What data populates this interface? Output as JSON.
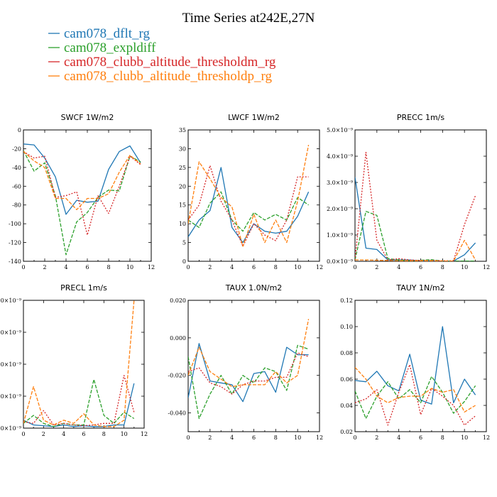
{
  "figure": {
    "title": "Time Series at242E,27N"
  },
  "legend": [
    {
      "name": "cam078_dflt_rg",
      "color": "#1f77b4",
      "dash": "solid"
    },
    {
      "name": "cam078_expldiff",
      "color": "#2ca02c",
      "dash": "dashed"
    },
    {
      "name": "cam078_clubb_altitude_thresholdm_rg",
      "color": "#d62728",
      "dash": "dotted"
    },
    {
      "name": "cam078_clubb_altitude_thresholdp_rg",
      "color": "#ff7f0e",
      "dash": "dashed"
    }
  ],
  "chart_data": [
    {
      "type": "line",
      "title": "SWCF   1W/m2",
      "x": [
        0,
        1,
        2,
        3,
        4,
        5,
        6,
        7,
        8,
        9,
        10,
        11
      ],
      "xlim": [
        0,
        12
      ],
      "xticks": [
        "0",
        "2",
        "4",
        "6",
        "8",
        "10",
        "12"
      ],
      "ylim": [
        -140,
        0
      ],
      "yticks": [
        "0",
        "-20",
        "-40",
        "-60",
        "-80",
        "-100",
        "-120",
        "-140"
      ],
      "series": [
        {
          "name": "cam078_dflt_rg",
          "values": [
            -15,
            -16,
            -30,
            -50,
            -90,
            -75,
            -77,
            -76,
            -42,
            -23,
            -17,
            -35
          ]
        },
        {
          "name": "cam078_expldiff",
          "values": [
            -22,
            -44,
            -35,
            -70,
            -133,
            -98,
            -88,
            -72,
            -64,
            -65,
            -28,
            -34
          ]
        },
        {
          "name": "cam078_clubb_altitude_thresholdm_rg",
          "values": [
            -23,
            -30,
            -28,
            -72,
            -70,
            -66,
            -112,
            -70,
            -89,
            -60,
            -28,
            -37
          ]
        },
        {
          "name": "cam078_clubb_altitude_thresholdp_rg",
          "values": [
            -23,
            -33,
            -40,
            -73,
            -73,
            -85,
            -73,
            -73,
            -68,
            -45,
            -27,
            -36
          ]
        }
      ]
    },
    {
      "type": "line",
      "title": "LWCF   1W/m2",
      "x": [
        0,
        1,
        2,
        3,
        4,
        5,
        6,
        7,
        8,
        9,
        10,
        11
      ],
      "xlim": [
        0,
        12
      ],
      "xticks": [
        "0",
        "2",
        "4",
        "6",
        "8",
        "10",
        "12"
      ],
      "ylim": [
        0,
        35
      ],
      "yticks": [
        "0",
        "5",
        "10",
        "15",
        "20",
        "25",
        "30",
        "35"
      ],
      "series": [
        {
          "name": "cam078_dflt_rg",
          "values": [
            6.5,
            11,
            13.5,
            25,
            9,
            5,
            10,
            8,
            7.5,
            8,
            12,
            18.5
          ]
        },
        {
          "name": "cam078_expldiff",
          "values": [
            11,
            9,
            15.5,
            18.5,
            11,
            8,
            13,
            11,
            12.5,
            11,
            17,
            15
          ]
        },
        {
          "name": "cam078_clubb_altitude_thresholdm_rg",
          "values": [
            11,
            15,
            25.5,
            16,
            11,
            4,
            10,
            7,
            5.5,
            11,
            22.5,
            22.5
          ]
        },
        {
          "name": "cam078_clubb_altitude_thresholdp_rg",
          "values": [
            10,
            26.5,
            22,
            17,
            14.5,
            4,
            12.5,
            5,
            11,
            5,
            16,
            31
          ]
        }
      ]
    },
    {
      "type": "line",
      "title": "PRECC   1m/s",
      "x": [
        0,
        1,
        2,
        3,
        4,
        5,
        6,
        7,
        8,
        9,
        10,
        11
      ],
      "xlim": [
        0,
        12
      ],
      "xticks": [
        "0",
        "2",
        "4",
        "6",
        "8",
        "10",
        "12"
      ],
      "ylim": [
        0,
        5e-09
      ],
      "yticks": [
        "0.0×10⁻⁹",
        "1.0×10⁻⁹",
        "2.0×10⁻⁹",
        "3.0×10⁻⁹",
        "4.0×10⁻⁹",
        "5.0×10⁻⁹"
      ],
      "series": [
        {
          "name": "cam078_dflt_rg",
          "values": [
            3.2e-09,
            5e-10,
            4.5e-10,
            5e-11,
            5e-11,
            5e-11,
            2e-11,
            2e-11,
            1e-11,
            1e-11,
            2.5e-10,
            7e-10
          ]
        },
        {
          "name": "cam078_expldiff",
          "values": [
            5e-11,
            1.9e-09,
            1.75e-09,
            1e-10,
            5e-11,
            2e-11,
            4e-11,
            6e-11,
            1e-11,
            1e-11,
            1e-11,
            1e-11
          ]
        },
        {
          "name": "cam078_clubb_altitude_thresholdm_rg",
          "values": [
            5e-11,
            4.15e-09,
            8e-10,
            5e-11,
            1e-10,
            5e-11,
            3e-11,
            3e-11,
            2e-11,
            2e-11,
            1.4e-09,
            2.5e-09
          ]
        },
        {
          "name": "cam078_clubb_altitude_thresholdp_rg",
          "values": [
            5e-11,
            5e-11,
            4e-11,
            3e-11,
            2e-11,
            2e-11,
            2e-11,
            2e-11,
            1e-11,
            1e-11,
            8e-10,
            5e-11
          ]
        }
      ]
    },
    {
      "type": "line",
      "title": "PRECL   1m/s",
      "x": [
        0,
        1,
        2,
        3,
        4,
        5,
        6,
        7,
        8,
        9,
        10,
        11
      ],
      "xlim": [
        0,
        12
      ],
      "xticks": [
        "0",
        "2",
        "4",
        "6",
        "8",
        "10",
        "12"
      ],
      "ylim": [
        0,
        8e-09
      ],
      "yticks": [
        "0.0×10⁻⁹",
        "2.0×10⁻⁹",
        "4.0×10⁻⁹",
        "6.0×10⁻⁹",
        "8.0×10⁻⁹"
      ],
      "series": [
        {
          "name": "cam078_dflt_rg",
          "values": [
            5e-10,
            2e-10,
            1.5e-10,
            1e-10,
            2e-10,
            1e-10,
            1.5e-10,
            1e-10,
            1e-10,
            2e-10,
            2e-10,
            2.8e-09
          ]
        },
        {
          "name": "cam078_expldiff",
          "values": [
            3e-10,
            8e-10,
            3e-10,
            1e-10,
            3e-10,
            2e-10,
            2e-10,
            3.05e-09,
            8e-10,
            3e-10,
            1e-09,
            6e-10
          ]
        },
        {
          "name": "cam078_clubb_altitude_thresholdm_rg",
          "values": [
            4e-10,
            3e-10,
            1.1e-09,
            2e-10,
            3e-10,
            2e-10,
            1.5e-10,
            2e-10,
            3e-10,
            3e-10,
            3.3e-09,
            1e-09
          ]
        },
        {
          "name": "cam078_clubb_altitude_thresholdp_rg",
          "values": [
            3e-10,
            2.6e-09,
            5e-10,
            2e-10,
            5e-10,
            3e-10,
            9e-10,
            2e-10,
            1e-10,
            1e-10,
            5e-10,
            8e-09
          ]
        }
      ]
    },
    {
      "type": "line",
      "title": "TAUX   1.0N/m2",
      "x": [
        0,
        1,
        2,
        3,
        4,
        5,
        6,
        7,
        8,
        9,
        10,
        11
      ],
      "xlim": [
        0,
        12
      ],
      "xticks": [
        "0",
        "2",
        "4",
        "6",
        "8",
        "10",
        "12"
      ],
      "ylim": [
        -0.05,
        0.02
      ],
      "yticks": [
        "0.020",
        "0.000",
        "-0.020",
        "-0.040"
      ],
      "series": [
        {
          "name": "cam078_dflt_rg",
          "values": [
            -0.032,
            -0.003,
            -0.023,
            -0.024,
            -0.025,
            -0.034,
            -0.019,
            -0.018,
            -0.029,
            -0.005,
            -0.009,
            -0.009
          ]
        },
        {
          "name": "cam078_expldiff",
          "values": [
            -0.01,
            -0.043,
            -0.03,
            -0.02,
            -0.03,
            -0.02,
            -0.024,
            -0.016,
            -0.018,
            -0.028,
            -0.004,
            -0.006
          ]
        },
        {
          "name": "cam078_clubb_altitude_thresholdm_rg",
          "values": [
            -0.018,
            -0.016,
            -0.024,
            -0.026,
            -0.03,
            -0.025,
            -0.023,
            -0.023,
            -0.021,
            -0.021,
            -0.008,
            -0.01
          ]
        },
        {
          "name": "cam078_clubb_altitude_thresholdp_rg",
          "values": [
            -0.02,
            -0.005,
            -0.018,
            -0.022,
            -0.026,
            -0.025,
            -0.025,
            -0.025,
            -0.018,
            -0.024,
            -0.02,
            0.01
          ]
        }
      ]
    },
    {
      "type": "line",
      "title": "TAUY   1N/m2",
      "x": [
        0,
        1,
        2,
        3,
        4,
        5,
        6,
        7,
        8,
        9,
        10,
        11
      ],
      "xlim": [
        0,
        12
      ],
      "xticks": [
        "0",
        "2",
        "4",
        "6",
        "8",
        "10",
        "12"
      ],
      "ylim": [
        0.02,
        0.12
      ],
      "yticks": [
        "0.02",
        "0.04",
        "0.06",
        "0.08",
        "0.10",
        "0.12"
      ],
      "series": [
        {
          "name": "cam078_dflt_rg",
          "values": [
            0.059,
            0.058,
            0.066,
            0.055,
            0.051,
            0.079,
            0.044,
            0.041,
            0.1,
            0.042,
            0.06,
            0.048
          ]
        },
        {
          "name": "cam078_expldiff",
          "values": [
            0.051,
            0.03,
            0.047,
            0.058,
            0.045,
            0.052,
            0.042,
            0.062,
            0.05,
            0.034,
            0.043,
            0.055
          ]
        },
        {
          "name": "cam078_clubb_altitude_thresholdm_rg",
          "values": [
            0.042,
            0.045,
            0.052,
            0.025,
            0.05,
            0.071,
            0.033,
            0.053,
            0.047,
            0.04,
            0.025,
            0.032
          ]
        },
        {
          "name": "cam078_clubb_altitude_thresholdp_rg",
          "values": [
            0.069,
            0.06,
            0.047,
            0.042,
            0.046,
            0.047,
            0.047,
            0.053,
            0.05,
            0.052,
            0.035,
            0.04
          ]
        }
      ]
    }
  ]
}
